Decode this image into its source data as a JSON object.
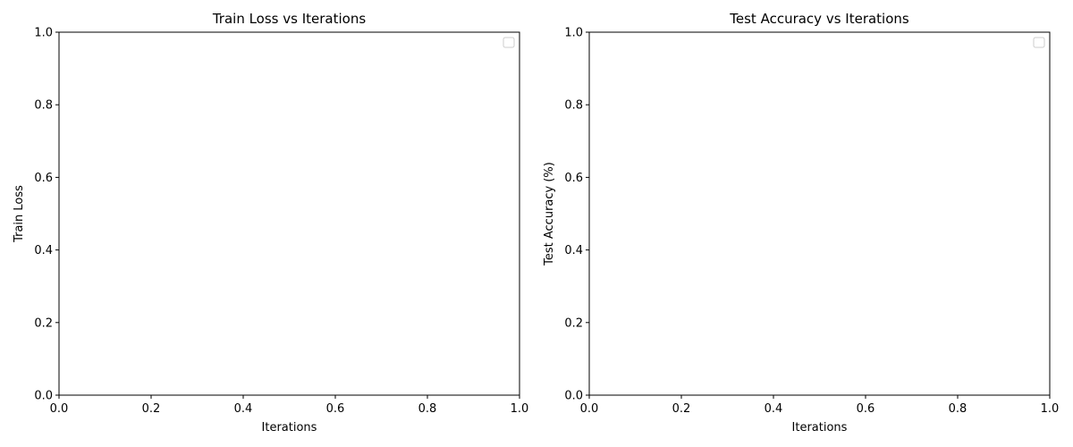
{
  "chart_data": [
    {
      "type": "line",
      "title": "Train Loss vs Iterations",
      "xlabel": "Iterations",
      "ylabel": "Train Loss",
      "xlim": [
        0,
        1
      ],
      "ylim": [
        0,
        1
      ],
      "xticks": [
        "0.0",
        "0.2",
        "0.4",
        "0.6",
        "0.8",
        "1.0"
      ],
      "yticks": [
        "0.0",
        "0.2",
        "0.4",
        "0.6",
        "0.8",
        "1.0"
      ],
      "series": [],
      "grid": false,
      "legend": "top-right"
    },
    {
      "type": "line",
      "title": "Test Accuracy vs Iterations",
      "xlabel": "Iterations",
      "ylabel": "Test Accuracy (%)",
      "xlim": [
        0,
        1
      ],
      "ylim": [
        0,
        1
      ],
      "xticks": [
        "0.0",
        "0.2",
        "0.4",
        "0.6",
        "0.8",
        "1.0"
      ],
      "yticks": [
        "0.0",
        "0.2",
        "0.4",
        "0.6",
        "0.8",
        "1.0"
      ],
      "series": [],
      "grid": false,
      "legend": "top-right"
    }
  ]
}
